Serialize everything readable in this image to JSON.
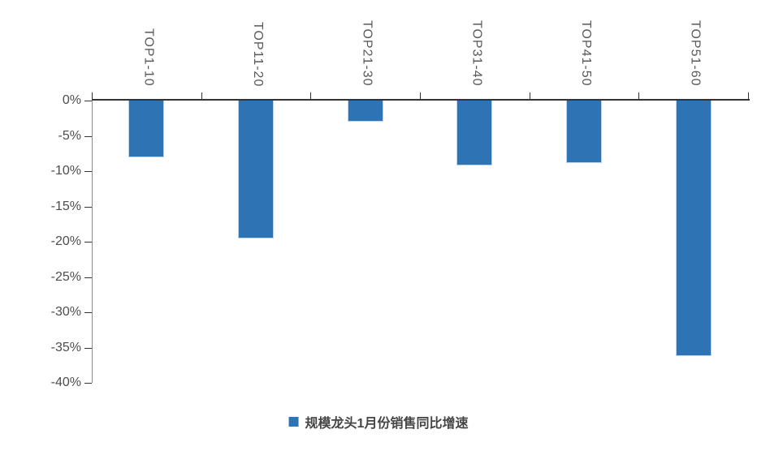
{
  "chart_data": {
    "type": "bar",
    "title": "",
    "categories": [
      "TOP1-10",
      "TOP11-20",
      "TOP21-30",
      "TOP31-40",
      "TOP41-50",
      "TOP51-60"
    ],
    "series": [
      {
        "name": "规模龙头1月份销售同比增速",
        "values": [
          -8.0,
          -19.5,
          -3.0,
          -9.2,
          -8.8,
          -36.2
        ]
      }
    ],
    "xlabel": "",
    "ylabel": "",
    "y_tick_labels": [
      "0%",
      "-5%",
      "-10%",
      "-15%",
      "-20%",
      "-25%",
      "-30%",
      "-35%",
      "-40%"
    ],
    "ylim": [
      0,
      -40
    ],
    "grid": false,
    "legend_position": "bottom",
    "bar_color": "#2E74B5",
    "axis_text_color": "#595959",
    "category_labels_position": "top-rotated-90cw"
  },
  "legend": {
    "marker_color": "#2E74B5",
    "label": "规模龙头1月份销售同比增速"
  }
}
